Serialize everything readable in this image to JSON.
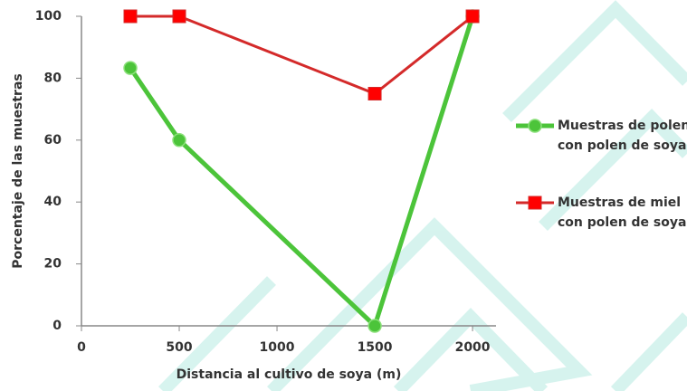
{
  "chart_data": {
    "type": "line",
    "x_label": "Distancia al cultivo de soya (m)",
    "y_label": "Porcentaje de las muestras",
    "x": [
      250,
      500,
      1500,
      2000
    ],
    "series": [
      {
        "name": "Muestras de polen con polen de soya",
        "color": "#4cc43a",
        "marker": "circle",
        "values": [
          83.3,
          60,
          0,
          100
        ]
      },
      {
        "name": "Muestras de miel con polen de soya",
        "color": "#d42a2a",
        "marker": "square",
        "values": [
          100,
          100,
          75,
          100
        ]
      }
    ],
    "xlim": [
      0,
      2120
    ],
    "xticks": [
      0,
      500,
      1000,
      1500,
      2000
    ],
    "ylim": [
      0,
      100
    ],
    "yticks": [
      0,
      20,
      40,
      60,
      80,
      100
    ],
    "grid": false
  }
}
